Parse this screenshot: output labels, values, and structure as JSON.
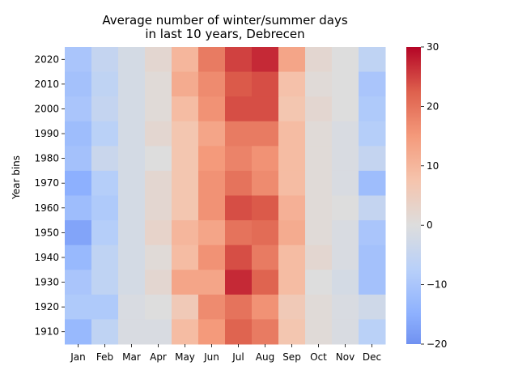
{
  "chart_data": {
    "type": "heatmap",
    "title_lines": [
      "Average number of winter/summer days",
      "in last 10 years, Debrecen"
    ],
    "ylabel": "Year bins",
    "xlabel": "",
    "x_categories": [
      "Jan",
      "Feb",
      "Mar",
      "Apr",
      "May",
      "Jun",
      "Jul",
      "Aug",
      "Sep",
      "Oct",
      "Nov",
      "Dec"
    ],
    "y_categories": [
      "2020",
      "2010",
      "2000",
      "1990",
      "1980",
      "1970",
      "1960",
      "1950",
      "1940",
      "1930",
      "1920",
      "1910"
    ],
    "values": [
      [
        -10,
        -5,
        -2,
        2,
        10,
        19,
        25,
        27,
        13,
        2,
        0,
        -6
      ],
      [
        -11,
        -6,
        -2,
        1,
        12,
        17,
        23,
        24,
        8,
        1,
        0,
        -10
      ],
      [
        -10,
        -5,
        -2,
        1,
        9,
        16,
        24,
        24,
        7,
        2,
        0,
        -9
      ],
      [
        -12,
        -7,
        -2,
        2,
        7,
        13,
        19,
        19,
        9,
        1,
        -1,
        -8
      ],
      [
        -11,
        -4,
        -2,
        0,
        7,
        15,
        18,
        16,
        9,
        1,
        -1,
        -5
      ],
      [
        -15,
        -8,
        -2,
        2,
        7,
        16,
        20,
        17,
        9,
        1,
        -1,
        -12
      ],
      [
        -12,
        -9,
        -2,
        2,
        7,
        16,
        24,
        23,
        11,
        1,
        0,
        -5
      ],
      [
        -17,
        -8,
        -2,
        3,
        10,
        13,
        20,
        21,
        12,
        1,
        -1,
        -10
      ],
      [
        -13,
        -6,
        -2,
        1,
        9,
        16,
        24,
        19,
        9,
        2,
        -1,
        -11
      ],
      [
        -10,
        -6,
        -2,
        2,
        13,
        13,
        27,
        22,
        9,
        0,
        -2,
        -11
      ],
      [
        -9,
        -9,
        -1,
        0,
        6,
        17,
        20,
        16,
        6,
        1,
        -1,
        -3
      ],
      [
        -13,
        -6,
        -1,
        -1,
        9,
        15,
        22,
        19,
        7,
        1,
        -1,
        -7
      ]
    ],
    "colorbar": {
      "min": -20,
      "max": 30,
      "ticks": [
        "30",
        "20",
        "10",
        "0",
        "−10",
        "−20"
      ],
      "colormap": "coolwarm"
    },
    "x_tick_labels": [
      "Jan",
      "Feb",
      "Mar",
      "Apr",
      "May",
      "Jun",
      "Jul",
      "Aug",
      "Sep",
      "Oct",
      "Nov",
      "Dec"
    ],
    "y_tick_labels": [
      "2020",
      "2010",
      "2000",
      "1990",
      "1980",
      "1970",
      "1960",
      "1950",
      "1940",
      "1930",
      "1920",
      "1910"
    ],
    "legend": "colorbar right"
  }
}
